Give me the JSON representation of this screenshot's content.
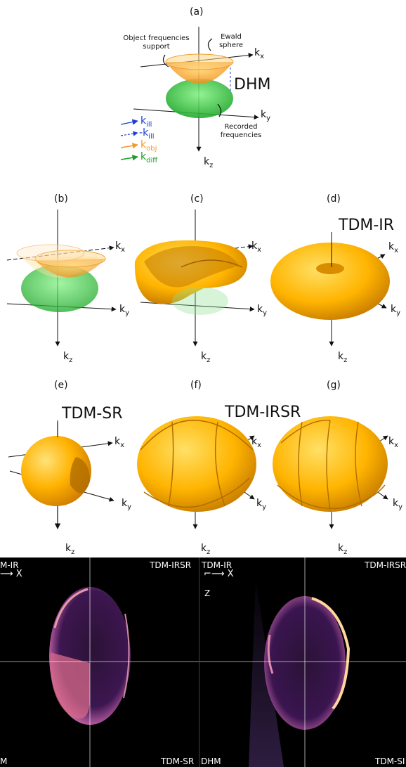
{
  "panels": {
    "a": "(a)",
    "b": "(b)",
    "c": "(c)",
    "d": "(d)",
    "e": "(e)",
    "f": "(f)",
    "g": "(g)"
  },
  "titles": {
    "dhm": "DHM",
    "tdm_ir": "TDM-IR",
    "tdm_sr": "TDM-SR",
    "tdm_irsr": "TDM-IRSR"
  },
  "annotations": {
    "object_support": "Object frequencies support",
    "ewald": "Ewald sphere",
    "recorded": "Recorded frequencies"
  },
  "axes": {
    "k": "k",
    "x": "x",
    "y": "y",
    "z": "z"
  },
  "legend": [
    {
      "k": "k",
      "sub": "ill",
      "prefix": "",
      "color": "#1a3fd6",
      "style": "solid"
    },
    {
      "k": "k",
      "sub": "ill",
      "prefix": "-",
      "color": "#1a3fd6",
      "style": "dashed"
    },
    {
      "k": "k",
      "sub": "obj",
      "prefix": "",
      "color": "#f39a2a",
      "style": "solid"
    },
    {
      "k": "k",
      "sub": "diff",
      "prefix": "",
      "color": "#1f9a2a",
      "style": "solid"
    }
  ],
  "images": {
    "left": {
      "top_left": "M-IR",
      "axis": "X",
      "top_right": "TDM-IRSR",
      "bottom_left": "M",
      "bottom_right": "TDM-SR"
    },
    "right": {
      "top_left": "TDM-IR",
      "axis_x": "X",
      "axis_z": "Z",
      "top_right": "TDM-IRSR",
      "bottom_left": "DHM",
      "bottom_right": "TDM-SI"
    }
  },
  "colors": {
    "orange": "#f5a623",
    "green": "#3cc43c",
    "yellow": "#ffc21a"
  }
}
